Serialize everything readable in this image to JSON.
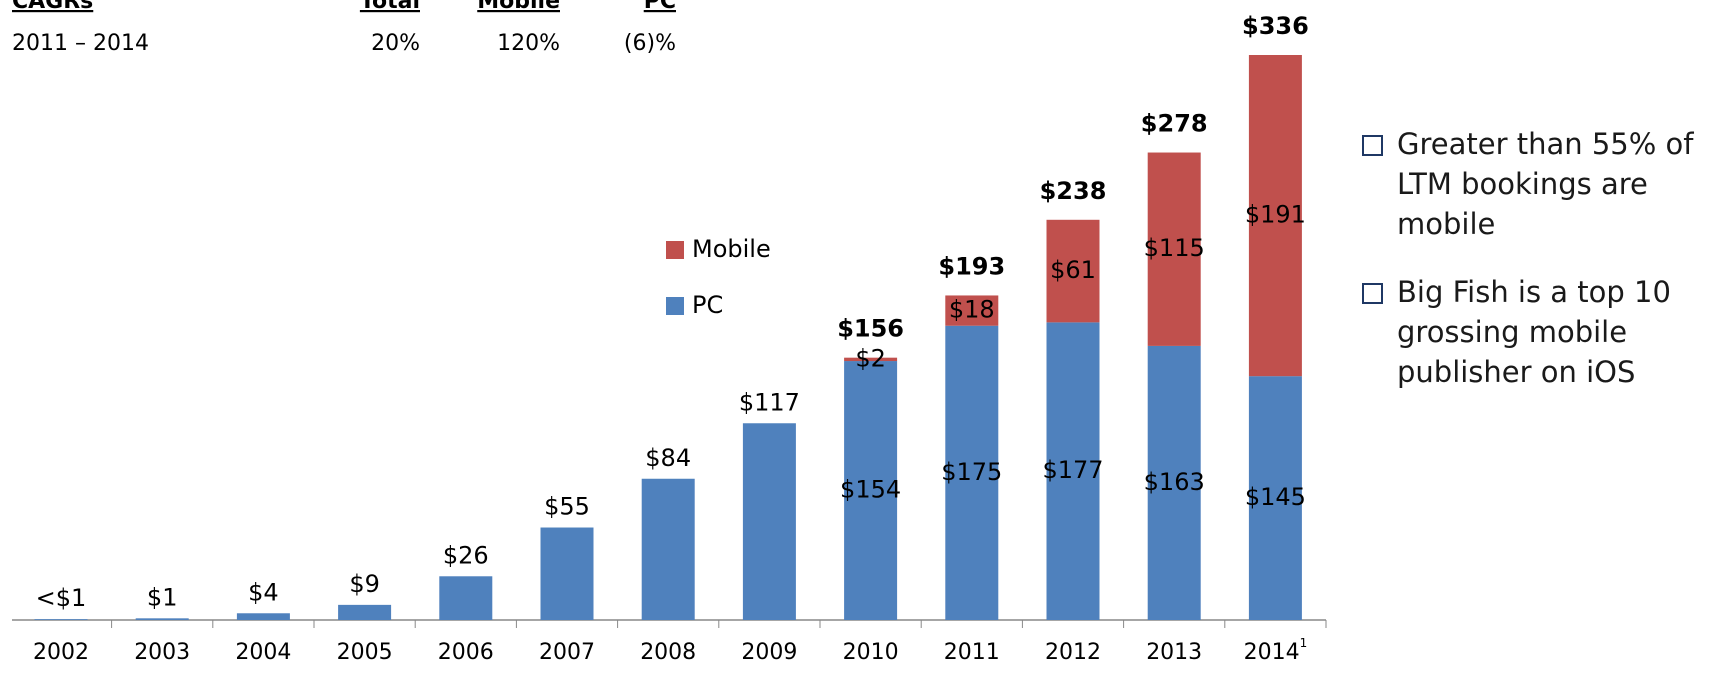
{
  "cagr_table": {
    "headers": [
      "CAGRs",
      "Total",
      "Mobile",
      "PC"
    ],
    "rows": [
      [
        "2011 – 2014",
        "20%",
        "120%",
        "(6)%"
      ]
    ]
  },
  "chart_data": {
    "type": "stacked_bar",
    "categories": [
      "2002",
      "2003",
      "2004",
      "2005",
      "2006",
      "2007",
      "2008",
      "2009",
      "2010",
      "2011",
      "2012",
      "2013",
      "2014"
    ],
    "footnote_marker": "1",
    "series": [
      {
        "name": "PC",
        "color": "#4f81bd",
        "values": [
          0.5,
          1,
          4,
          9,
          26,
          55,
          84,
          117,
          154,
          175,
          177,
          163,
          145
        ],
        "value_labels": [
          "<$1",
          "$1",
          "$4",
          "$9",
          "$26",
          "$55",
          "$84",
          "$117",
          "$154",
          "$175",
          "$177",
          "$163",
          "$145"
        ]
      },
      {
        "name": "Mobile",
        "color": "#c0504d",
        "values": [
          null,
          null,
          null,
          null,
          null,
          null,
          null,
          null,
          2,
          18,
          61,
          115,
          191
        ],
        "value_labels": [
          null,
          null,
          null,
          null,
          null,
          null,
          null,
          null,
          "$2",
          "$18",
          "$61",
          "$115",
          "$191"
        ]
      }
    ],
    "totals": [
      null,
      null,
      null,
      null,
      null,
      null,
      null,
      null,
      156,
      193,
      238,
      278,
      336
    ],
    "total_labels": [
      null,
      null,
      null,
      null,
      null,
      null,
      null,
      null,
      "$156",
      "$193",
      "$238",
      "$278",
      "$336"
    ]
  },
  "bullets": [
    [
      "Greater than 55% of",
      "LTM bookings are",
      "mobile"
    ],
    [
      "Big Fish is a top 10",
      "grossing mobile",
      "publisher on iOS"
    ]
  ]
}
